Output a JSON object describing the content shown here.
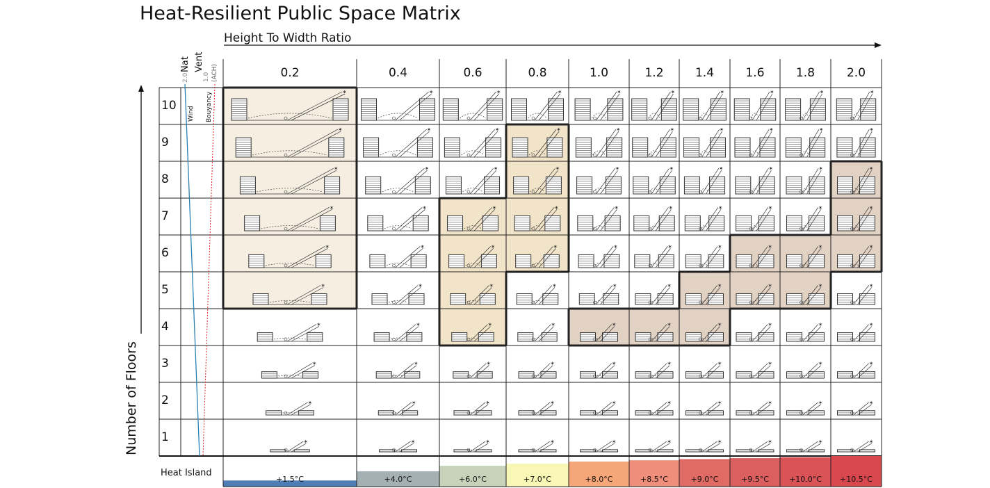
{
  "title": "Heat-Resilient Public Space Matrix",
  "x_axis_title": "Height To Width Ratio",
  "y_axis_title": "Number of Floors",
  "columns": [
    "0.2",
    "0.4",
    "0.6",
    "0.8",
    "1.0",
    "1.2",
    "1.4",
    "1.6",
    "1.8",
    "2.0"
  ],
  "rows": [
    "10",
    "9",
    "8",
    "7",
    "6",
    "5",
    "4",
    "3",
    "2",
    "1"
  ],
  "ventilation": {
    "header_nat": "Nat",
    "header_vent": "Vent",
    "header_unit": "(ACH)",
    "scale_high": "2.0",
    "scale_low": "1.0",
    "wind_label": "Wind",
    "buoyancy_label": "Bouyancy",
    "wind_color": "#2a7fb0",
    "buoyancy_color": "#d42020"
  },
  "heat_island": {
    "label": "Heat Island",
    "values": [
      "+1.5°C",
      "+4.0°C",
      "+6.0°C",
      "+7.0°C",
      "+8.0°C",
      "+8.5°C",
      "+9.0°C",
      "+9.5°C",
      "+10.0°C",
      "+10.5°C"
    ],
    "colors": [
      "#4f7db5",
      "#a5b0b5",
      "#c6d2b9",
      "#f8f7b5",
      "#f5a77a",
      "#ef8e7a",
      "#e06a64",
      "#dc5f60",
      "#d95357",
      "#d9484f"
    ],
    "fraction": [
      0.2,
      0.5,
      0.68,
      0.75,
      0.82,
      0.86,
      0.9,
      0.93,
      0.96,
      1.0
    ]
  },
  "highlights": {
    "zone_a": {
      "color": "#f6eee0",
      "cells": [
        [
          0,
          0
        ],
        [
          1,
          0
        ],
        [
          2,
          0
        ],
        [
          3,
          0
        ],
        [
          4,
          0
        ],
        [
          5,
          0
        ]
      ]
    },
    "zone_b": {
      "color": "#f2e4c8",
      "cells": [
        [
          1,
          3
        ],
        [
          2,
          3
        ],
        [
          3,
          2
        ],
        [
          3,
          3
        ],
        [
          4,
          2
        ],
        [
          4,
          3
        ],
        [
          5,
          2
        ],
        [
          6,
          2
        ]
      ]
    },
    "zone_c": {
      "color": "#e2d2c4",
      "cells": [
        [
          2,
          9
        ],
        [
          3,
          9
        ],
        [
          4,
          7
        ],
        [
          4,
          8
        ],
        [
          4,
          9
        ],
        [
          5,
          6
        ],
        [
          5,
          7
        ],
        [
          5,
          8
        ],
        [
          6,
          4
        ],
        [
          6,
          5
        ],
        [
          6,
          6
        ]
      ]
    }
  }
}
